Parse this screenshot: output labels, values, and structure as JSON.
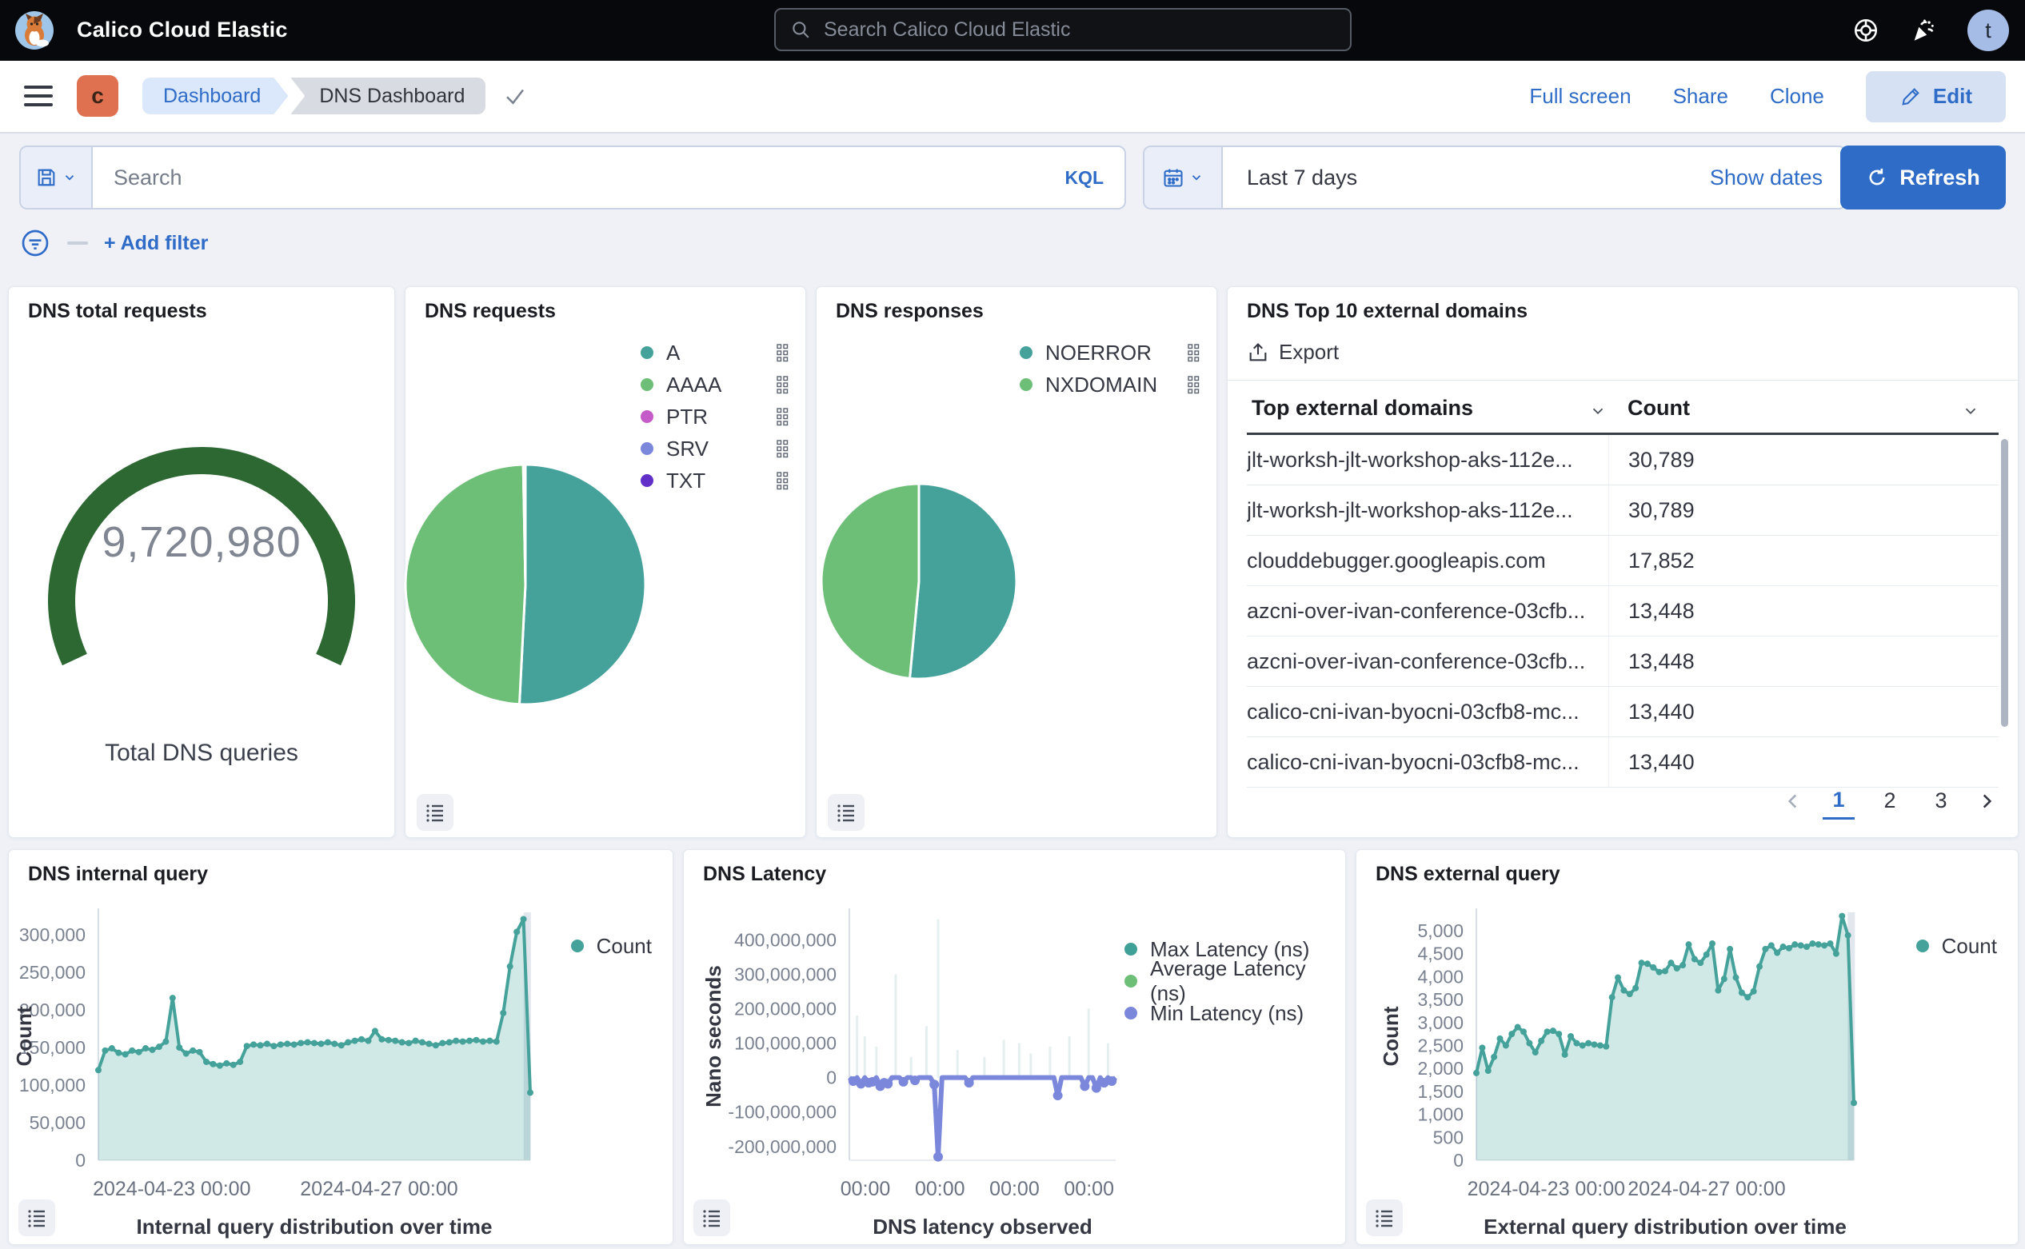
{
  "topbar": {
    "brand": "Calico Cloud Elastic",
    "search_placeholder": "Search Calico Cloud Elastic",
    "avatar_letter": "t"
  },
  "breadcrumbs": {
    "space_letter": "c",
    "items": [
      "Dashboard",
      "DNS Dashboard"
    ]
  },
  "actions": {
    "full_screen": "Full screen",
    "share": "Share",
    "clone": "Clone",
    "edit": "Edit"
  },
  "querybar": {
    "search_placeholder": "Search",
    "kql": "KQL",
    "time_range": "Last 7 days",
    "show_dates": "Show dates",
    "refresh": "Refresh",
    "add_filter": "+ Add filter"
  },
  "table": {
    "title": "DNS Top 10 external domains",
    "export_label": "Export",
    "columns": [
      "Top external domains",
      "Count"
    ],
    "rows": [
      [
        "jlt-worksh-jlt-workshop-aks-112e...",
        "30,789"
      ],
      [
        "jlt-worksh-jlt-workshop-aks-112e...",
        "30,789"
      ],
      [
        "clouddebugger.googleapis.com",
        "17,852"
      ],
      [
        "azcni-over-ivan-conference-03cfb...",
        "13,448"
      ],
      [
        "azcni-over-ivan-conference-03cfb...",
        "13,448"
      ],
      [
        "calico-cni-ivan-byocni-03cfb8-mc...",
        "13,440"
      ],
      [
        "calico-cni-ivan-byocni-03cfb8-mc...",
        "13,440"
      ]
    ],
    "pagination": {
      "pages": [
        "1",
        "2",
        "3"
      ],
      "active": "1"
    }
  },
  "colors": {
    "accent_blue": "#2E6CC8",
    "teal": "#45A29B",
    "green": "#6DBE76",
    "magenta": "#C45BC8",
    "periwinkle": "#7B87DB",
    "purple": "#6230C8",
    "gauge_green": "#2D6833"
  },
  "chart_data": [
    {
      "id": "gauge",
      "type": "gauge",
      "title": "DNS total requests",
      "value": 9720980,
      "display": "9,720,980",
      "label": "Total DNS queries",
      "color": "#2D6833"
    },
    {
      "id": "requests_pie",
      "type": "pie",
      "title": "DNS requests",
      "slices": [
        {
          "label": "A",
          "pct": 50.8,
          "color": "#45A29B"
        },
        {
          "label": "AAAA",
          "pct": 48.9,
          "color": "#6DBE76"
        },
        {
          "label": "PTR",
          "pct": 0.15,
          "color": "#C45BC8"
        },
        {
          "label": "SRV",
          "pct": 0.1,
          "color": "#7B87DB"
        },
        {
          "label": "TXT",
          "pct": 0.05,
          "color": "#6230C8"
        }
      ]
    },
    {
      "id": "responses_pie",
      "type": "pie",
      "title": "DNS responses",
      "slices": [
        {
          "label": "NOERROR",
          "pct": 51.5,
          "color": "#45A29B"
        },
        {
          "label": "NXDOMAIN",
          "pct": 48.5,
          "color": "#6DBE76"
        }
      ]
    },
    {
      "id": "internal",
      "type": "area",
      "title": "DNS internal query",
      "xlabel": "Internal query distribution over time",
      "ylabel": "Count",
      "legend": [
        {
          "label": "Count",
          "color": "#45A29B"
        }
      ],
      "ylim": [
        0,
        330000
      ],
      "yticks": [
        {
          "v": 0,
          "label": "0"
        },
        {
          "v": 50000,
          "label": "50,000"
        },
        {
          "v": 100000,
          "label": "100,000"
        },
        {
          "v": 150000,
          "label": "150,000"
        },
        {
          "v": 200000,
          "label": "200,000"
        },
        {
          "v": 250000,
          "label": "250,000"
        },
        {
          "v": 300000,
          "label": "300,000"
        }
      ],
      "xticks": [
        {
          "pos": 0.17,
          "label": "2024-04-23 00:00"
        },
        {
          "pos": 0.65,
          "label": "2024-04-27 00:00"
        }
      ],
      "values": [
        120000,
        146000,
        149000,
        143000,
        141000,
        146000,
        144000,
        149000,
        147000,
        151000,
        158000,
        216000,
        150000,
        142000,
        146000,
        144000,
        131000,
        128000,
        126000,
        129000,
        127000,
        131000,
        152000,
        154000,
        153000,
        155000,
        152000,
        154000,
        155000,
        154000,
        156000,
        157000,
        156000,
        155000,
        157000,
        155000,
        153000,
        157000,
        159000,
        161000,
        159000,
        172000,
        161000,
        160000,
        159000,
        157000,
        156000,
        159000,
        157000,
        155000,
        153000,
        156000,
        157000,
        159000,
        158000,
        159000,
        160000,
        158000,
        159000,
        158000,
        196000,
        258000,
        304000,
        321000,
        90000
      ]
    },
    {
      "id": "latency",
      "type": "latency",
      "title": "DNS Latency",
      "xlabel": "DNS latency observed",
      "ylabel": "Nano seconds",
      "legend": [
        {
          "label": "Max Latency (ns)",
          "color": "#3FA097"
        },
        {
          "label": "Average Latency (ns)",
          "color": "#6DBE76"
        },
        {
          "label": "Min Latency (ns)",
          "color": "#7B87DB"
        }
      ],
      "ylim": [
        -240000000,
        480000000
      ],
      "yticks": [
        {
          "v": 400000000,
          "label": "400,000,000"
        },
        {
          "v": 300000000,
          "label": "300,000,000"
        },
        {
          "v": 200000000,
          "label": "200,000,000"
        },
        {
          "v": 100000000,
          "label": "100,000,000"
        },
        {
          "v": 0,
          "label": "0"
        },
        {
          "v": -100000000,
          "label": "-100,000,000"
        },
        {
          "v": -200000000,
          "label": "-200,000,000"
        }
      ],
      "xticks": [
        {
          "pos": 0.06,
          "label": "00:00"
        },
        {
          "pos": 0.34,
          "label": "00:00"
        },
        {
          "pos": 0.62,
          "label": "00:00"
        },
        {
          "pos": 0.9,
          "label": "00:00"
        }
      ],
      "min_values": [
        0,
        -10000000,
        0,
        -18000000,
        0,
        -15000000,
        -12000000,
        0,
        -25000000,
        -15000000,
        -18000000,
        0,
        0,
        0,
        -12000000,
        0,
        0,
        -8000000,
        0,
        0,
        0,
        0,
        -20000000,
        -230000000,
        0,
        0,
        0,
        0,
        0,
        0,
        0,
        -15000000,
        0,
        0,
        0,
        0,
        0,
        0,
        0,
        0,
        0,
        0,
        0,
        0,
        0,
        0,
        0,
        0,
        0,
        0,
        0,
        0,
        0,
        0,
        -52000000,
        0,
        0,
        0,
        0,
        0,
        0,
        -25000000,
        0,
        0,
        -30000000,
        0,
        -15000000,
        0,
        -10000000,
        0
      ],
      "max_values": [
        0,
        0,
        180000000,
        0,
        120000000,
        0,
        0,
        90000000,
        0,
        0,
        0,
        0,
        300000000,
        0,
        0,
        0,
        60000000,
        0,
        0,
        0,
        150000000,
        0,
        0,
        460000000,
        0,
        0,
        0,
        0,
        80000000,
        0,
        0,
        0,
        0,
        0,
        0,
        60000000,
        0,
        0,
        0,
        0,
        110000000,
        0,
        0,
        0,
        100000000,
        0,
        0,
        70000000,
        0,
        0,
        0,
        0,
        90000000,
        0,
        0,
        0,
        0,
        120000000,
        0,
        0,
        0,
        0,
        200000000,
        0,
        0,
        0,
        0,
        100000000,
        0,
        0
      ]
    },
    {
      "id": "external",
      "type": "area",
      "title": "DNS external query",
      "xlabel": "External query distribution over time",
      "ylabel": "Count",
      "legend": [
        {
          "label": "Count",
          "color": "#45A29B"
        }
      ],
      "ylim": [
        0,
        5400
      ],
      "yticks": [
        {
          "v": 0,
          "label": "0"
        },
        {
          "v": 500,
          "label": "500"
        },
        {
          "v": 1000,
          "label": "1,000"
        },
        {
          "v": 1500,
          "label": "1,500"
        },
        {
          "v": 2000,
          "label": "2,000"
        },
        {
          "v": 2500,
          "label": "2,500"
        },
        {
          "v": 3000,
          "label": "3,000"
        },
        {
          "v": 3500,
          "label": "3,500"
        },
        {
          "v": 4000,
          "label": "4,000"
        },
        {
          "v": 4500,
          "label": "4,500"
        },
        {
          "v": 5000,
          "label": "5,000"
        }
      ],
      "xticks": [
        {
          "pos": 0.185,
          "label": "2024-04-23 00:00"
        },
        {
          "pos": 0.61,
          "label": "2024-04-27 00:00"
        }
      ],
      "values": [
        1900,
        2450,
        1950,
        2250,
        2650,
        2500,
        2750,
        2900,
        2800,
        2550,
        2350,
        2600,
        2800,
        2820,
        2750,
        2300,
        2700,
        2550,
        2500,
        2550,
        2520,
        2500,
        2480,
        3550,
        3980,
        3700,
        3620,
        3750,
        4300,
        4280,
        4200,
        4100,
        4120,
        4300,
        4180,
        4250,
        4700,
        4380,
        4300,
        4480,
        4720,
        3700,
        3950,
        4600,
        3980,
        3650,
        3550,
        3680,
        4220,
        4600,
        4680,
        4520,
        4650,
        4620,
        4700,
        4680,
        4650,
        4720,
        4700,
        4680,
        4720,
        4500,
        5320,
        4900,
        1250
      ]
    }
  ]
}
